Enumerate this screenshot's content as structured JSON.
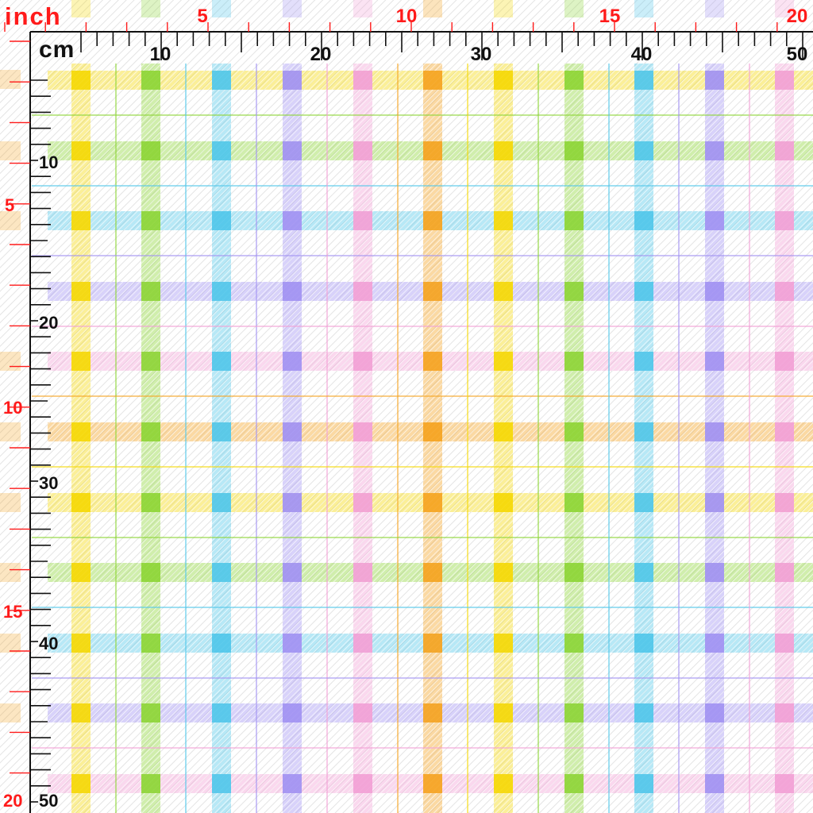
{
  "rulers": {
    "inch_unit": "inch",
    "cm_unit": "cm",
    "inch_labels": [
      "5",
      "10",
      "15",
      "20"
    ],
    "inch_labels_side": [
      "5",
      "10",
      "15",
      "20"
    ],
    "cm_labels": [
      "10",
      "20",
      "30",
      "40",
      "50"
    ],
    "cm_labels_side": [
      "10",
      "20",
      "30",
      "40",
      "50"
    ]
  },
  "fabric": {
    "colors": [
      "#f5d90a",
      "#8fd63a",
      "#54c8ea",
      "#a394f2",
      "#f2a2d6",
      "#f5a524",
      "#f5d90a",
      "#8fd63a",
      "#54c8ea",
      "#a394f2",
      "#f2a2d6"
    ],
    "thin_line_colors": [
      "#f5d90a",
      "#8fd63a",
      "#54c8ea",
      "#a394f2",
      "#f2a2d6",
      "#f5a524",
      "#f5d90a",
      "#8fd63a",
      "#54c8ea",
      "#a394f2",
      "#f2a2d6"
    ],
    "ruler_color": "#111111",
    "inch_color": "#ff1a1a"
  }
}
